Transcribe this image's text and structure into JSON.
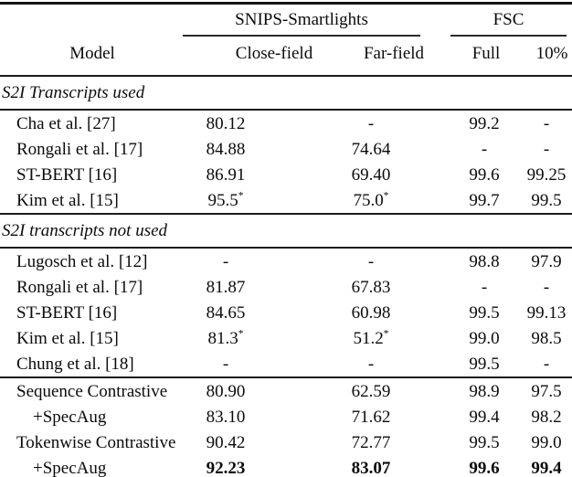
{
  "page": {
    "background": "#ffffff",
    "text_color": "#0b0b0b",
    "rule_color": "#1c1c1c"
  },
  "table": {
    "model_header": "Model",
    "groups": [
      {
        "label": "SNIPS-Smartlights",
        "children": [
          "Close-field",
          "Far-field"
        ]
      },
      {
        "label": "FSC",
        "children": [
          "Full",
          "10%"
        ]
      }
    ],
    "sections": [
      {
        "header": "S2I Transcripts used",
        "rows": [
          {
            "label": "Cha et al. [27]",
            "indent": 0,
            "bold": false,
            "values": [
              "80.12",
              "-",
              "99.2",
              "-"
            ]
          },
          {
            "label": "Rongali et al. [17]",
            "indent": 0,
            "bold": false,
            "values": [
              "84.88",
              "74.64",
              "-",
              "-"
            ]
          },
          {
            "label": "ST-BERT [16]",
            "indent": 0,
            "bold": false,
            "values": [
              "86.91",
              "69.40",
              "99.6",
              "99.25"
            ]
          },
          {
            "label": "Kim et al. [15]",
            "indent": 0,
            "bold": false,
            "values": [
              "95.5*",
              "75.0*",
              "99.7",
              "99.5"
            ]
          }
        ]
      },
      {
        "header": "S2I transcripts not used",
        "rows": [
          {
            "label": "Lugosch et al. [12]",
            "indent": 0,
            "bold": false,
            "values": [
              "-",
              "-",
              "98.8",
              "97.9"
            ]
          },
          {
            "label": "Rongali et al. [17]",
            "indent": 0,
            "bold": false,
            "values": [
              "81.87",
              "67.83",
              "-",
              "-"
            ]
          },
          {
            "label": "ST-BERT [16]",
            "indent": 0,
            "bold": false,
            "values": [
              "84.65",
              "60.98",
              "99.5",
              "99.13"
            ]
          },
          {
            "label": "Kim et al. [15]",
            "indent": 0,
            "bold": false,
            "values": [
              "81.3*",
              "51.2*",
              "99.0",
              "98.5"
            ]
          },
          {
            "label": "Chung et al. [18]",
            "indent": 0,
            "bold": false,
            "values": [
              "-",
              "-",
              "99.5",
              "-"
            ]
          }
        ]
      },
      {
        "header": null,
        "rows": [
          {
            "label": "Sequence Contrastive",
            "indent": 0,
            "bold": false,
            "values": [
              "80.90",
              "62.59",
              "98.9",
              "97.5"
            ]
          },
          {
            "label": "+SpecAug",
            "indent": 1,
            "bold": false,
            "values": [
              "83.10",
              "71.62",
              "99.4",
              "98.2"
            ]
          },
          {
            "label": "Tokenwise Contrastive",
            "indent": 0,
            "bold": false,
            "values": [
              "90.42",
              "72.77",
              "99.5",
              "99.0"
            ]
          },
          {
            "label": "+SpecAug",
            "indent": 1,
            "bold": true,
            "values": [
              "92.23",
              "83.07",
              "99.6",
              "99.4"
            ]
          }
        ]
      }
    ]
  }
}
